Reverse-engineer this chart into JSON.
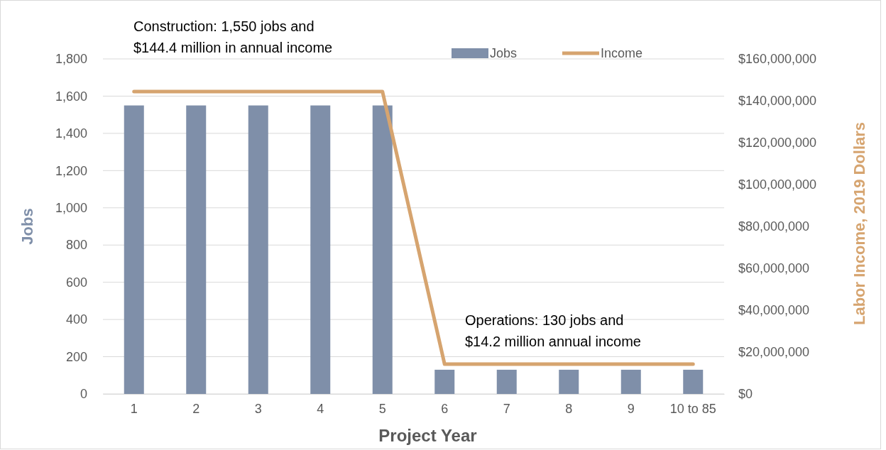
{
  "chart_data": {
    "type": "bar",
    "xlabel": "Project Year",
    "ylabel": "Jobs",
    "y2label": "Labor Income, 2019 Dollars",
    "categories": [
      "1",
      "2",
      "3",
      "4",
      "5",
      "6",
      "7",
      "8",
      "9",
      "10 to 85"
    ],
    "series": [
      {
        "name": "Jobs",
        "color": "#7f8fa9",
        "values": [
          1550,
          1550,
          1550,
          1550,
          1550,
          130,
          130,
          130,
          130,
          130
        ]
      },
      {
        "name": "Income",
        "type": "line",
        "axis": "y2",
        "color": "#d6a46f",
        "values": [
          144400000,
          144400000,
          144400000,
          144400000,
          144400000,
          14200000,
          14200000,
          14200000,
          14200000,
          14200000
        ]
      }
    ],
    "ylim": [
      0,
      1800
    ],
    "yticks": [
      {
        "value": 0,
        "label": "0"
      },
      {
        "value": 200,
        "label": "200"
      },
      {
        "value": 400,
        "label": "400"
      },
      {
        "value": 600,
        "label": "600"
      },
      {
        "value": 800,
        "label": "800"
      },
      {
        "value": 1000,
        "label": "1,000"
      },
      {
        "value": 1200,
        "label": "1,200"
      },
      {
        "value": 1400,
        "label": "1,400"
      },
      {
        "value": 1600,
        "label": "1,600"
      },
      {
        "value": 1800,
        "label": "1,800"
      }
    ],
    "y2lim": [
      0,
      160000000
    ],
    "y2ticks": [
      {
        "value": 0,
        "label": "$0"
      },
      {
        "value": 20000000,
        "label": "$20,000,000"
      },
      {
        "value": 40000000,
        "label": "$40,000,000"
      },
      {
        "value": 60000000,
        "label": "$60,000,000"
      },
      {
        "value": 80000000,
        "label": "$80,000,000"
      },
      {
        "value": 100000000,
        "label": "$100,000,000"
      },
      {
        "value": 120000000,
        "label": "$120,000,000"
      },
      {
        "value": 140000000,
        "label": "$140,000,000"
      },
      {
        "value": 160000000,
        "label": "$160,000,000"
      }
    ],
    "grid": "y",
    "legend": "top",
    "annotations": [
      "Construction: 1,550 jobs and\n$144.4 million in annual income",
      "Operations: 130 jobs and\n$14.2 million annual income"
    ]
  }
}
